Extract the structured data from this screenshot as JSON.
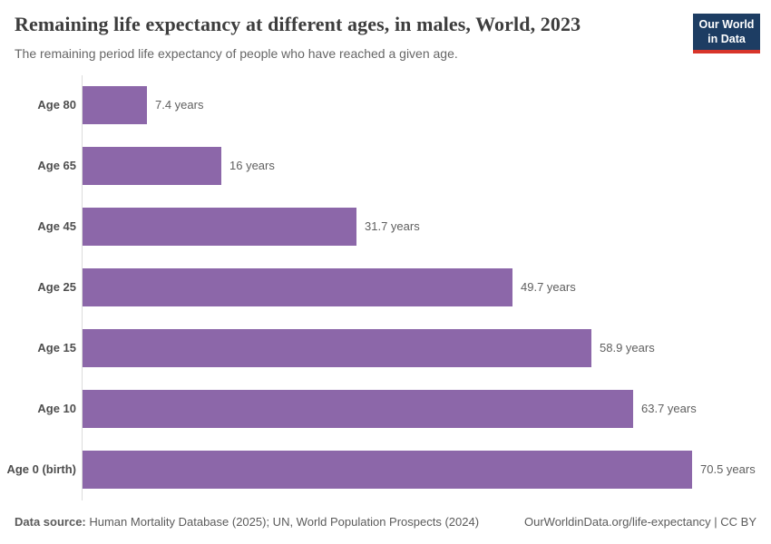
{
  "header": {
    "title": "Remaining life expectancy at different ages, in males, World, 2023",
    "subtitle": "The remaining period life expectancy of people who have reached a given age.",
    "logo": {
      "line1": "Our World",
      "line2": "in Data",
      "bg_color": "#1d3d63",
      "accent_color": "#d8352a"
    }
  },
  "chart_data": {
    "type": "bar",
    "orientation": "horizontal",
    "categories": [
      "Age 80",
      "Age 65",
      "Age 45",
      "Age 25",
      "Age 15",
      "Age 10",
      "Age 0 (birth)"
    ],
    "values": [
      7.4,
      16,
      31.7,
      49.7,
      58.9,
      63.7,
      70.5
    ],
    "value_labels": [
      "7.4 years",
      "16 years",
      "31.7 years",
      "49.7 years",
      "58.9 years",
      "63.7 years",
      "70.5 years"
    ],
    "unit": "years",
    "title": "Remaining life expectancy at different ages, in males, World, 2023",
    "xlabel": "",
    "ylabel": "",
    "xlim": [
      0,
      70.5
    ],
    "grid": false,
    "legend": "none",
    "bar_color": "#8c67a9"
  },
  "footer": {
    "source_label": "Data source:",
    "source_text": " Human Mortality Database (2025); UN, World Population Prospects (2024)",
    "attribution": "OurWorldinData.org/life-expectancy | CC BY"
  }
}
